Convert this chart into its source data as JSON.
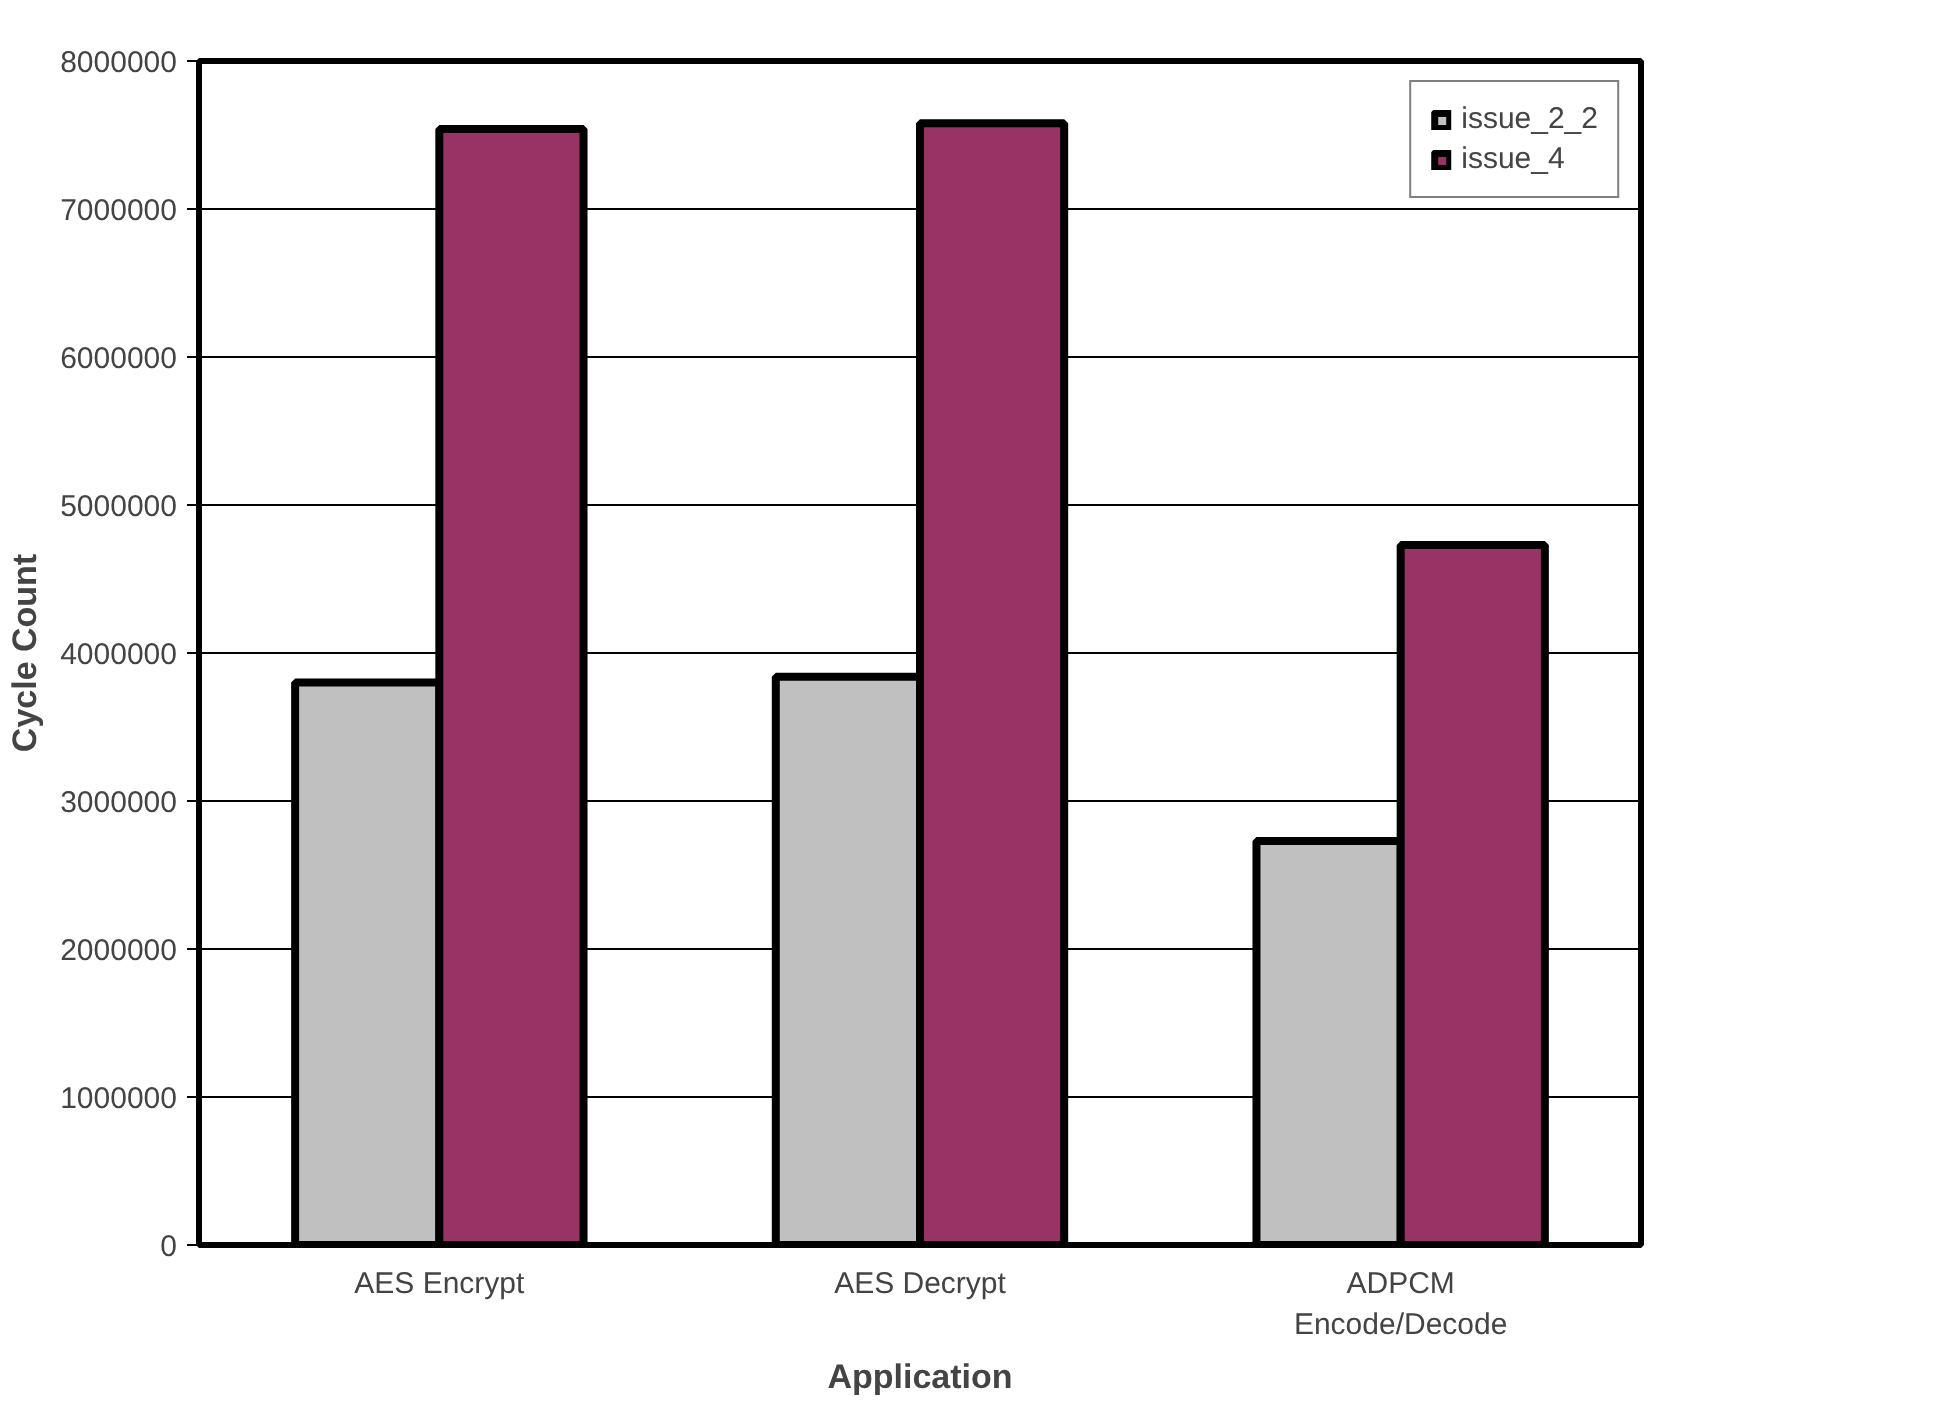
{
  "chart_data": {
    "type": "bar",
    "xlabel": "Application",
    "ylabel": "Cycle Count",
    "categories": [
      "AES Encrypt",
      "AES Decrypt",
      "ADPCM\nEncode/Decode"
    ],
    "series": [
      {
        "name": "issue_2_2",
        "color": "#c0c0c0",
        "values": [
          3800000,
          3840000,
          2730000
        ]
      },
      {
        "name": "issue_4",
        "color": "#993366",
        "values": [
          7540000,
          7580000,
          4730000
        ]
      }
    ],
    "ylim": [
      0,
      8000000
    ],
    "yticks": [
      0,
      1000000,
      2000000,
      3000000,
      4000000,
      5000000,
      6000000,
      7000000,
      8000000
    ],
    "grid": "y",
    "legend": "top right"
  }
}
